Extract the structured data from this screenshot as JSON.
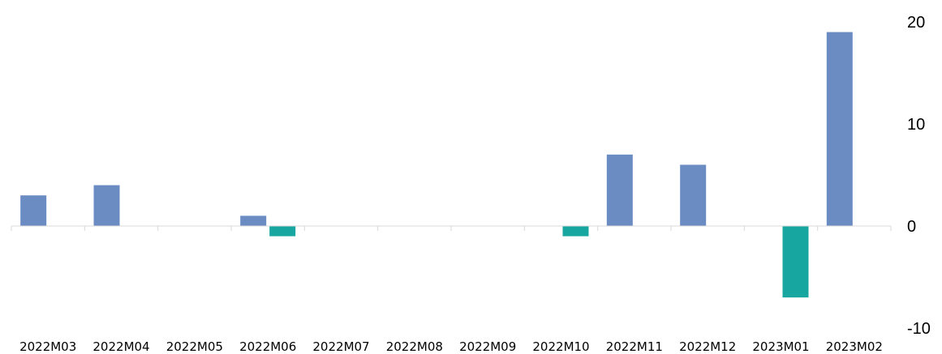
{
  "chart_data": {
    "type": "bar",
    "categories": [
      "2022M03",
      "2022M04",
      "2022M05",
      "2022M06",
      "2022M07",
      "2022M08",
      "2022M09",
      "2022M10",
      "2022M11",
      "2022M12",
      "2023M01",
      "2023M02"
    ],
    "series": [
      {
        "values": [
          3,
          4,
          0,
          1,
          0,
          0,
          0,
          0,
          7,
          6,
          0,
          19
        ]
      },
      {
        "values": [
          0,
          0,
          0,
          -1,
          0,
          0,
          0,
          -1,
          0,
          0,
          -7,
          0
        ]
      }
    ],
    "yticks": [
      "20",
      "10",
      "0",
      "-10"
    ],
    "ylim": [
      -10,
      20
    ],
    "colors": [
      "#6B8CC3",
      "#17A6A0"
    ],
    "title": "",
    "xlabel": "",
    "ylabel": "",
    "grid": false,
    "y_axis_position": "right"
  }
}
